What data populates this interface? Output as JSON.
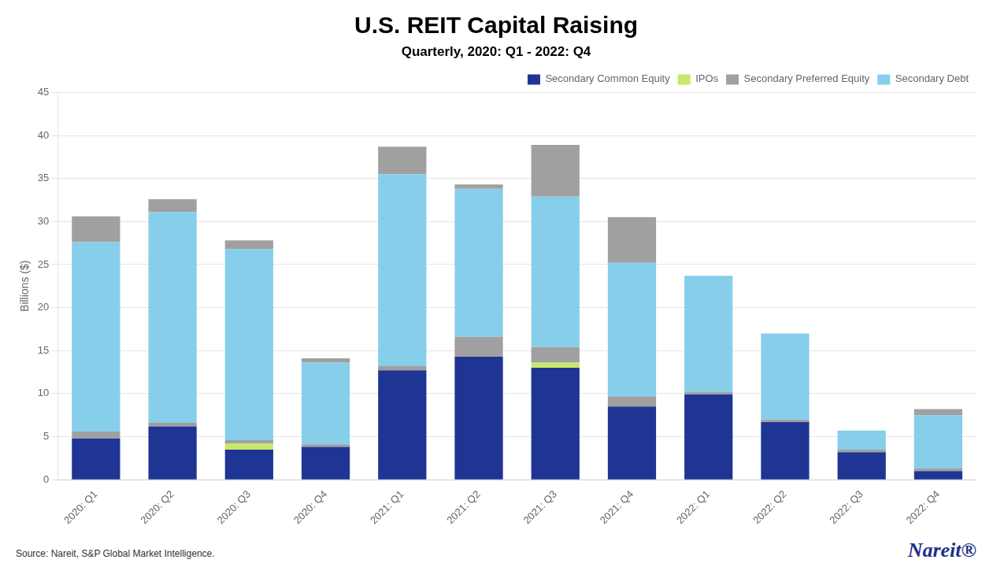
{
  "chart_data": {
    "type": "bar",
    "stacked": true,
    "title": "U.S. REIT Capital Raising",
    "subtitle": "Quarterly, 2020: Q1 - 2022: Q4",
    "ylabel": "Billions ($)",
    "source": "Source: Nareit, S&P Global Market Intelligence.",
    "annotations": [
      {
        "text": "Nareit®",
        "color": "#1a2f8a"
      }
    ],
    "categories": [
      "2020: Q1",
      "2020: Q2",
      "2020: Q3",
      "2020: Q4",
      "2021: Q1",
      "2021: Q2",
      "2021: Q3",
      "2021: Q4",
      "2022: Q1",
      "2022: Q2",
      "2022: Q3",
      "2022: Q4"
    ],
    "series": [
      {
        "name": "Secondary Common Equity",
        "color": "#1f3594",
        "values": [
          4.8,
          6.2,
          3.5,
          3.8,
          12.7,
          14.3,
          13.0,
          8.5,
          9.9,
          6.7,
          3.2,
          1.0
        ]
      },
      {
        "name": "IPOs",
        "color": "#c8e86a",
        "values": [
          0.0,
          0.0,
          0.7,
          0.0,
          0.0,
          0.0,
          0.6,
          0.0,
          0.0,
          0.0,
          0.0,
          0.0
        ]
      },
      {
        "name": "Secondary Preferred Equity",
        "color": "#a0a0a0",
        "values": [
          0.8,
          0.4,
          0.4,
          0.3,
          0.5,
          2.3,
          1.8,
          1.2,
          0.3,
          0.3,
          0.3,
          0.3
        ]
      },
      {
        "name": "Secondary Debt",
        "color": "#87ceeb",
        "values": [
          22.0,
          24.5,
          22.2,
          9.5,
          22.3,
          17.2,
          17.5,
          15.5,
          13.5,
          10.0,
          2.2,
          6.2
        ]
      },
      {
        "name": "Secondary Preferred Equity",
        "color": "#a0a0a0",
        "values": [
          3.0,
          1.5,
          1.0,
          0.5,
          3.2,
          0.5,
          6.0,
          5.3,
          0.0,
          0.0,
          0.0,
          0.7
        ]
      }
    ],
    "ylim": [
      0,
      45
    ],
    "yticks": [
      0,
      5,
      10,
      15,
      20,
      25,
      30,
      35,
      40,
      45
    ],
    "grid": true,
    "legend": "upper right"
  }
}
